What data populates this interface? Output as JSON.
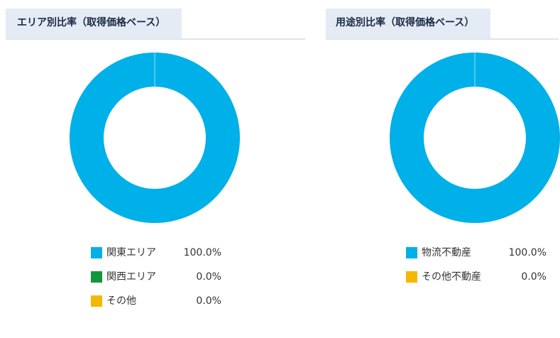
{
  "chart_data": [
    {
      "type": "pie",
      "title": "エリア別比率（取得価格ベース）",
      "donut": true,
      "categories": [
        "関東エリア",
        "関西エリア",
        "その他"
      ],
      "values": [
        100.0,
        0.0,
        0.0
      ],
      "value_labels": [
        "100.0%",
        "0.0%",
        "0.0%"
      ],
      "colors": [
        "#00b0e8",
        "#12963c",
        "#f5b800"
      ],
      "legend": "bottom"
    },
    {
      "type": "pie",
      "title": "用途別比率（取得価格ベース）",
      "donut": true,
      "categories": [
        "物流不動産",
        "その他不動産"
      ],
      "values": [
        100.0,
        0.0
      ],
      "value_labels": [
        "100.0%",
        "0.0%"
      ],
      "colors": [
        "#00b0e8",
        "#f5b800"
      ],
      "legend": "bottom"
    }
  ]
}
